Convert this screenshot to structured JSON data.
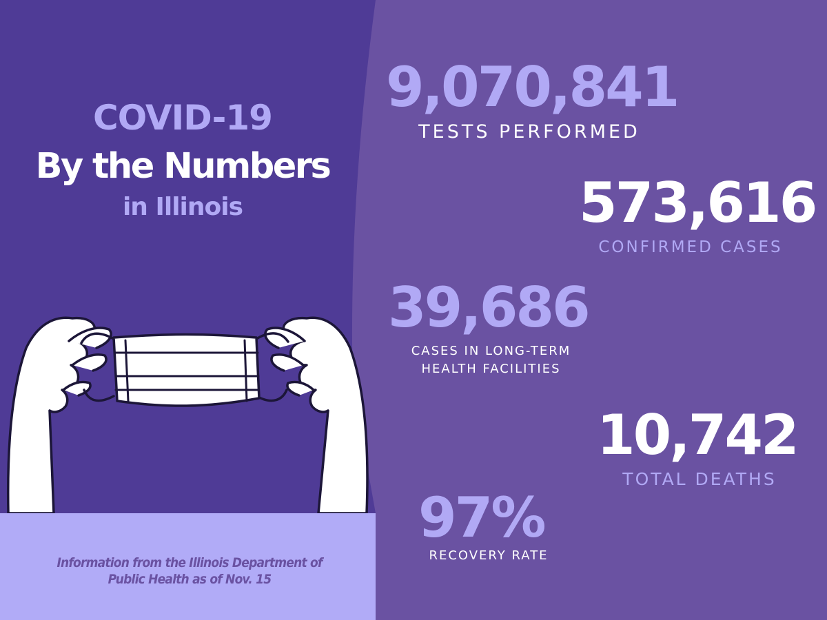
{
  "colors": {
    "left_panel": "#4f3b96",
    "right_panel": "#6a52a2",
    "accent_lavender": "#b1a9f5",
    "footer_bg": "#b1abf7",
    "white": "#ffffff"
  },
  "title": {
    "line1": "COVID-19",
    "line2": "By the Numbers",
    "line3": "in Illinois"
  },
  "illustration": {
    "name": "hands-holding-face-mask"
  },
  "source_note": {
    "line1": "Information from the Illinois Department of",
    "line2": "Public Health as of Nov. 15"
  },
  "stats": [
    {
      "value": "9,070,841",
      "label_lines": [
        "TESTS PERFORMED"
      ]
    },
    {
      "value": "573,616",
      "label_lines": [
        "CONFIRMED CASES"
      ]
    },
    {
      "value": "39,686",
      "label_lines": [
        "CASES IN LONG-TERM",
        "HEALTH FACILITIES"
      ]
    },
    {
      "value": "10,742",
      "label_lines": [
        "TOTAL DEATHS"
      ]
    },
    {
      "value": "97%",
      "label_lines": [
        "RECOVERY RATE"
      ]
    }
  ]
}
